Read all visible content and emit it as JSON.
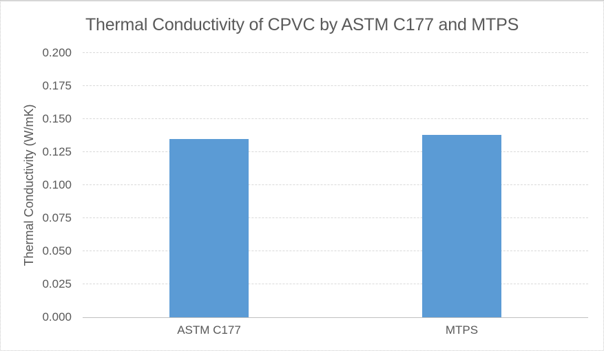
{
  "chart_data": {
    "type": "bar",
    "title": "Thermal Conductivity of CPVC by ASTM C177 and MTPS",
    "xlabel": "",
    "ylabel": "Thermal Conductivity (W/mK)",
    "categories": [
      "ASTM C177",
      "MTPS"
    ],
    "values": [
      0.135,
      0.138
    ],
    "ylim": [
      0,
      0.2
    ],
    "ytick_step": 0.025,
    "ytick_labels": [
      "0.000",
      "0.025",
      "0.050",
      "0.075",
      "0.100",
      "0.125",
      "0.150",
      "0.175",
      "0.200"
    ],
    "grid": "horizontal-dashed",
    "legend": "none"
  },
  "colors": {
    "bar": "#5B9BD5",
    "text": "#595959",
    "gridline": "#D9D9D9",
    "axis_line": "#BFBFBF",
    "background": "#FFFFFF",
    "border": "#C8C8C8"
  }
}
